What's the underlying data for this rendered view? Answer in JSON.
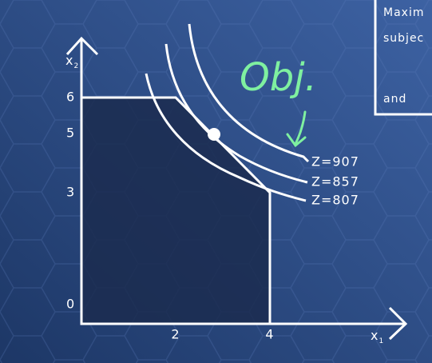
{
  "axes": {
    "y_label": {
      "main": "x",
      "sub": "2"
    },
    "x_label": {
      "main": "x",
      "sub": "1"
    },
    "y_ticks": [
      "6",
      "5",
      "3",
      "0"
    ],
    "x_ticks": [
      "2",
      "4"
    ]
  },
  "curves": [
    {
      "label": "Z=907"
    },
    {
      "label": "Z=857"
    },
    {
      "label": "Z=807"
    }
  ],
  "annotation": "Obj.",
  "panel": {
    "lines": [
      "Maxim",
      "subjec",
      "and"
    ]
  }
}
